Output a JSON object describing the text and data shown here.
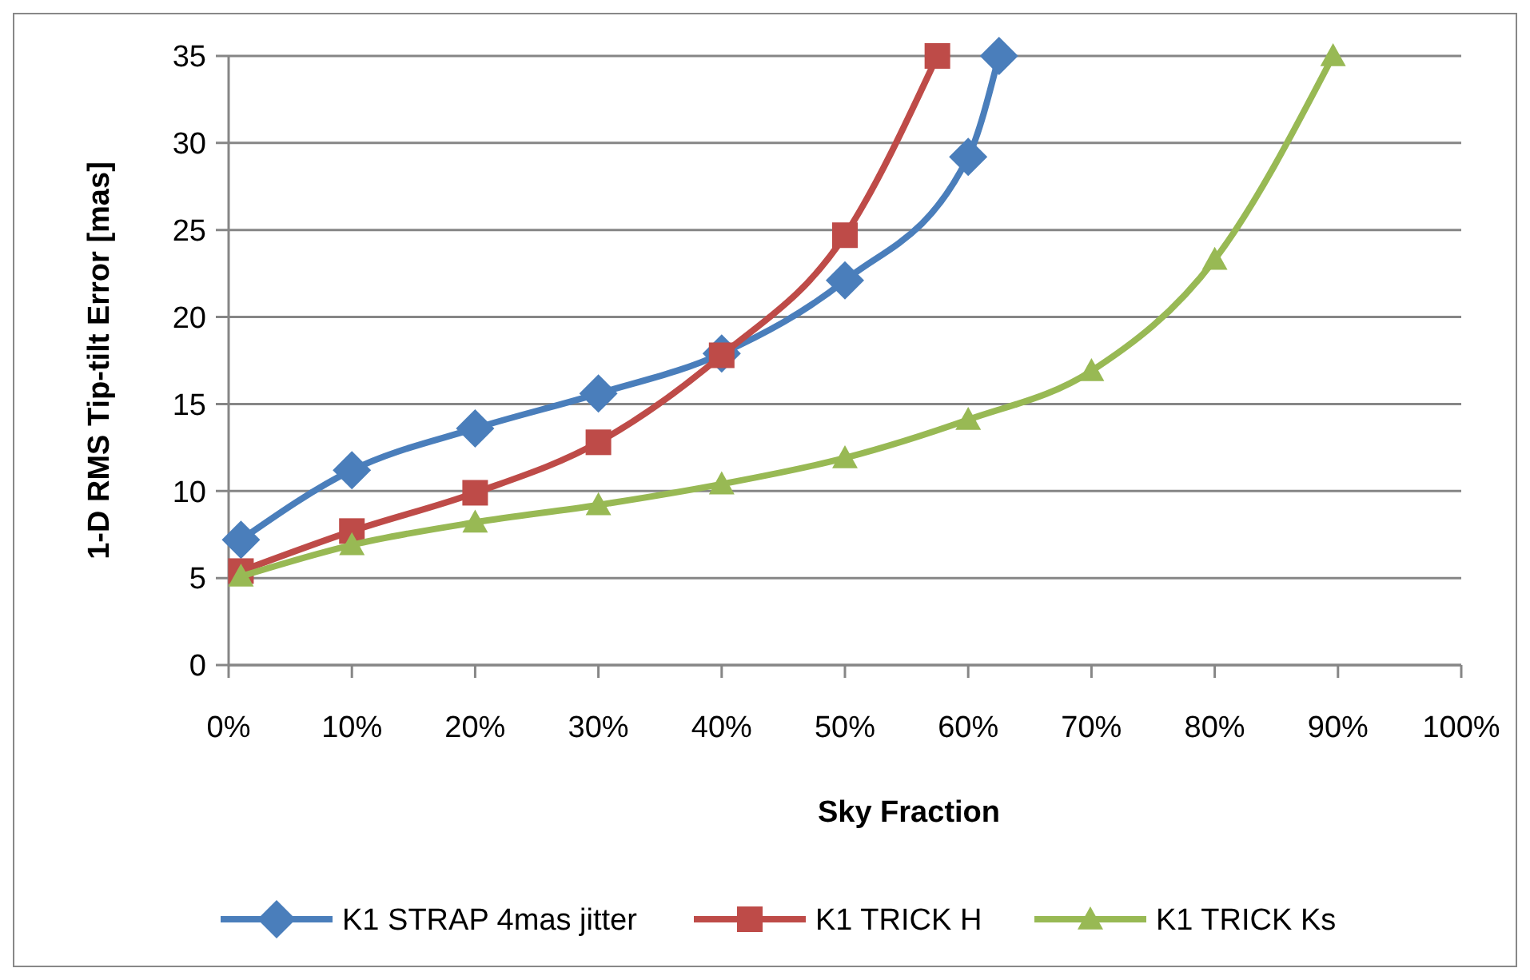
{
  "chart_data": {
    "type": "line",
    "xlabel": "Sky Fraction",
    "ylabel": "1-D RMS Tip-tilt  Error [mas]",
    "xlim": [
      0,
      100
    ],
    "xticks": [
      {
        "value": 0,
        "label": "0%"
      },
      {
        "value": 10,
        "label": "10%"
      },
      {
        "value": 20,
        "label": "20%"
      },
      {
        "value": 30,
        "label": "30%"
      },
      {
        "value": 40,
        "label": "40%"
      },
      {
        "value": 50,
        "label": "50%"
      },
      {
        "value": 60,
        "label": "60%"
      },
      {
        "value": 70,
        "label": "70%"
      },
      {
        "value": 80,
        "label": "80%"
      },
      {
        "value": 90,
        "label": "90%"
      },
      {
        "value": 100,
        "label": "100%"
      }
    ],
    "ylim": [
      0,
      35
    ],
    "yticks": [
      0,
      5,
      10,
      15,
      20,
      25,
      30,
      35
    ],
    "grid": "y",
    "legend": "bottom",
    "line_style": "solid",
    "series": [
      {
        "name": "K1 STRAP 4mas jitter",
        "color": "#4a7ebb",
        "marker": "diamond",
        "x": [
          1,
          10,
          20,
          30,
          40,
          50,
          60,
          62.5
        ],
        "values": [
          7.2,
          11.2,
          13.6,
          15.6,
          17.9,
          22.1,
          29.2,
          35
        ]
      },
      {
        "name": "K1 TRICK H",
        "color": "#be4b48",
        "marker": "square",
        "x": [
          1,
          10,
          20,
          30,
          40,
          50,
          57.5
        ],
        "values": [
          5.4,
          7.7,
          9.9,
          12.8,
          17.8,
          24.7,
          35
        ]
      },
      {
        "name": "K1 TRICK Ks",
        "color": "#98b954",
        "marker": "triangle",
        "x": [
          1,
          10,
          20,
          30,
          40,
          50,
          60,
          70,
          80,
          89.6
        ],
        "values": [
          5.1,
          6.9,
          8.2,
          9.2,
          10.4,
          11.9,
          14.1,
          16.9,
          23.3,
          35
        ]
      }
    ]
  }
}
